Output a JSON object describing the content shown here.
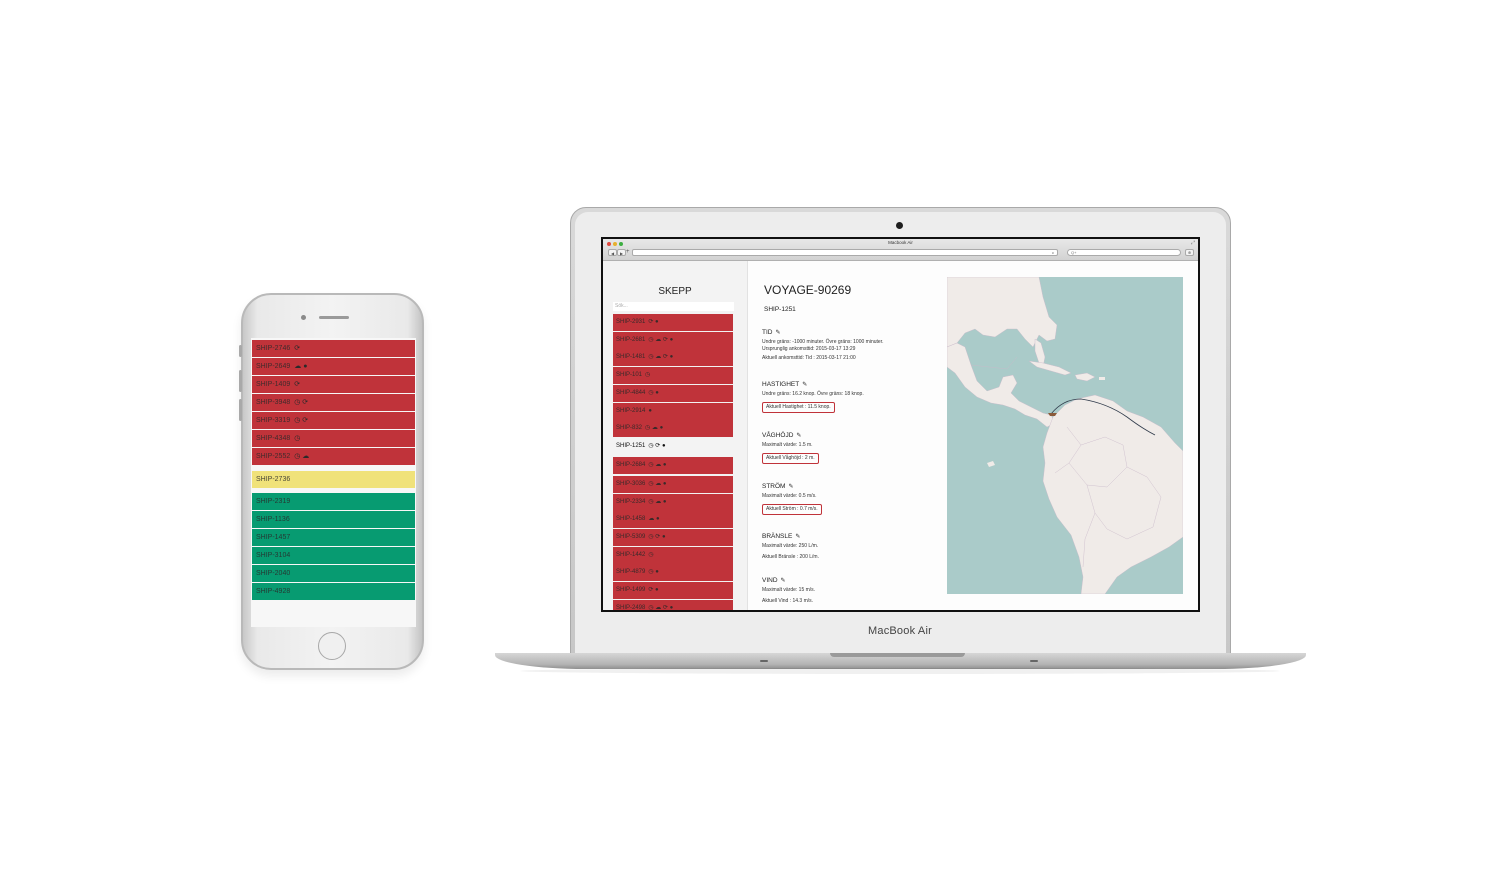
{
  "phone": {
    "rows": [
      {
        "label": "SHIP-2746",
        "icons": "⟳",
        "status": "red"
      },
      {
        "label": "SHIP-2649",
        "icons": "☁ ●",
        "status": "red"
      },
      {
        "label": "SHIP-1409",
        "icons": "⟳",
        "status": "red"
      },
      {
        "label": "SHIP-3948",
        "icons": "◷ ⟳",
        "status": "red"
      },
      {
        "label": "SHIP-3319",
        "icons": "◷ ⟳",
        "status": "red"
      },
      {
        "label": "SHIP-4348",
        "icons": "◷",
        "status": "red"
      },
      {
        "label": "SHIP-2552",
        "icons": "◷ ☁",
        "status": "red"
      },
      {
        "label": "SHIP-2736",
        "icons": "",
        "status": "yellow"
      },
      {
        "label": "SHIP-2319",
        "icons": "",
        "status": "green"
      },
      {
        "label": "SHIP-1136",
        "icons": "",
        "status": "green"
      },
      {
        "label": "SHIP-1457",
        "icons": "",
        "status": "green"
      },
      {
        "label": "SHIP-3104",
        "icons": "",
        "status": "green"
      },
      {
        "label": "SHIP-2040",
        "icons": "",
        "status": "green"
      },
      {
        "label": "SHIP-4928",
        "icons": "",
        "status": "green"
      }
    ]
  },
  "laptop": {
    "brand_label": "MacBook Air",
    "window_title": "Macbook Air",
    "search_placeholder": "Q+",
    "nav": {
      "back": "◀",
      "forward": "▶",
      "add": "+",
      "reload": "c",
      "ext": "⊕"
    }
  },
  "sidebar": {
    "title": "SKEPP",
    "search_placeholder": "Sök...",
    "items": [
      {
        "label": "SHIP-2931",
        "icons": "⟳ ●",
        "status": "red"
      },
      {
        "label": "SHIP-2681",
        "icons": "◷ ☁ ⟳ ●",
        "status": "red"
      },
      {
        "label": "SHIP-1481",
        "icons": "◷ ☁ ⟳ ●",
        "status": "red"
      },
      {
        "label": "SHIP-101",
        "icons": "◷",
        "status": "red"
      },
      {
        "label": "SHIP-4844",
        "icons": "◷ ●",
        "status": "red"
      },
      {
        "label": "SHIP-2914",
        "icons": "●",
        "status": "red"
      },
      {
        "label": "SHIP-832",
        "icons": "◷ ☁ ●",
        "status": "red"
      },
      {
        "label": "SHIP-1251",
        "icons": "◷ ⟳ ●",
        "status": "selected"
      },
      {
        "label": "SHIP-2684",
        "icons": "◷ ☁ ●",
        "status": "red"
      },
      {
        "label": "SHIP-3036",
        "icons": "◷ ☁ ●",
        "status": "red"
      },
      {
        "label": "SHIP-2334",
        "icons": "◷ ☁ ●",
        "status": "red"
      },
      {
        "label": "SHIP-1458",
        "icons": "☁ ●",
        "status": "red"
      },
      {
        "label": "SHIP-5309",
        "icons": "◷ ⟳ ●",
        "status": "red"
      },
      {
        "label": "SHIP-1442",
        "icons": "◷",
        "status": "red"
      },
      {
        "label": "SHIP-4879",
        "icons": "◷ ●",
        "status": "red"
      },
      {
        "label": "SHIP-1499",
        "icons": "⟳ ●",
        "status": "red"
      },
      {
        "label": "SHIP-2498",
        "icons": "◷ ☁ ⟳ ●",
        "status": "red"
      }
    ]
  },
  "details": {
    "title": "VOYAGE-90269",
    "ship": "SHIP-1251",
    "sections": [
      {
        "heading": "TID",
        "lines": [
          "Undre gräns: -1000 minuter. Övre gräns: 1000 minuter.",
          "Ursprunglig ankomsttid: 2015-03-17 13:29",
          "Aktuell ankomsttid: Tid : 2015-03-17 21:00"
        ],
        "box": ""
      },
      {
        "heading": "HASTIGHET",
        "lines": [
          "Undre gräns: 16.2 knop. Övre gräns: 18 knop."
        ],
        "box": "Aktuell Hastighet : 11.5 knop."
      },
      {
        "heading": "VÅGHÖJD",
        "lines": [
          "Maximalt värde: 1.5 m."
        ],
        "box": "Aktuell Våghöjd : 2 m."
      },
      {
        "heading": "STRÖM",
        "lines": [
          "Maximalt värde: 0.5 m/s."
        ],
        "box": "Aktuell Ström : 0.7 m/s."
      },
      {
        "heading": "BRÄNSLE",
        "lines": [
          "Maximalt värde: 250 L/m.",
          "Aktuell Bränsle : 200 L/m."
        ],
        "box": ""
      },
      {
        "heading": "VIND",
        "lines": [
          "Maximalt värde: 15 m/s.",
          "Aktuell Vind : 14.3 m/s."
        ],
        "box": ""
      }
    ]
  },
  "colors": {
    "red": "#c0333a",
    "yellow": "#f0e27a",
    "green": "#079b71",
    "sea": "#aacbc9",
    "land": "#f0ebe8"
  }
}
